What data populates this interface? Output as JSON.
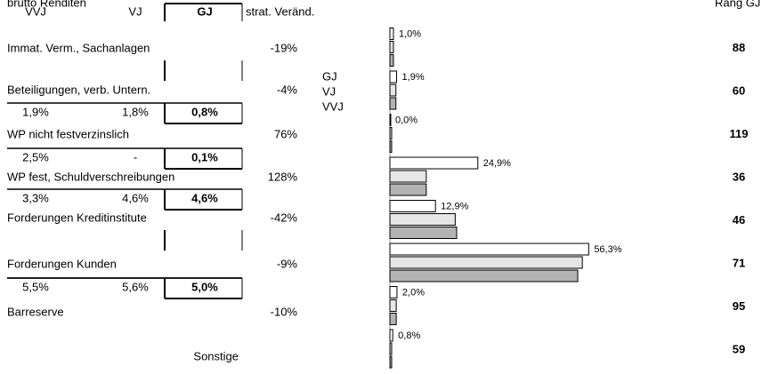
{
  "header": {
    "title": "brutto Renditen",
    "rank_title": "Rang GJ"
  },
  "table": {
    "columns": [
      "VVJ",
      "VJ",
      "GJ",
      "strat. Veränd."
    ],
    "rows": [
      {
        "label": "Immat. Verm., Sachanlagen",
        "change": "-19%"
      },
      {
        "label": "Beteiligungen, verb. Untern.",
        "change": "-4%"
      },
      {
        "label": "WP nicht festverzinslich",
        "change": "76%"
      },
      {
        "label": "WP fest, Schuldverschreibungen",
        "change": "128%"
      },
      {
        "label": "Forderungen Kreditinstitute",
        "change": "-42%"
      },
      {
        "label": "Forderungen Kunden",
        "change": "-9%"
      },
      {
        "label": "Barreserve",
        "change": "-10%"
      },
      {
        "label": "Sonstige"
      }
    ],
    "returns": [
      [
        "1,9%",
        "1,8%",
        "0,8%"
      ],
      [
        "2,5%",
        "-",
        "0,1%"
      ],
      [
        "3,3%",
        "4,6%",
        "4,6%"
      ],
      [
        "5,5%",
        "5,6%",
        "5,0%"
      ]
    ]
  },
  "chart_data": {
    "type": "bar",
    "orientation": "horizontal",
    "xlim": [
      0,
      60
    ],
    "series": [
      {
        "name": "GJ",
        "color": "#ffffff",
        "values": [
          1.0,
          1.9,
          0.0,
          24.9,
          12.9,
          56.3,
          2.0,
          0.8
        ],
        "value_labels": [
          "1,0%",
          "1,9%",
          "0,0%",
          "24,9%",
          "12,9%",
          "56,3%",
          "2,0%",
          "0,8%"
        ]
      },
      {
        "name": "VJ",
        "color": "#e6e6e6",
        "values": [
          1.0,
          1.7,
          0.5,
          10.3,
          18.5,
          54.5,
          1.8,
          0.5
        ]
      },
      {
        "name": "VVJ",
        "color": "#b3b3b3",
        "values": [
          1.0,
          1.7,
          0.5,
          10.3,
          18.9,
          53.2,
          1.8,
          0.5
        ]
      }
    ],
    "ranks": [
      88,
      60,
      119,
      36,
      46,
      71,
      95,
      59
    ]
  }
}
